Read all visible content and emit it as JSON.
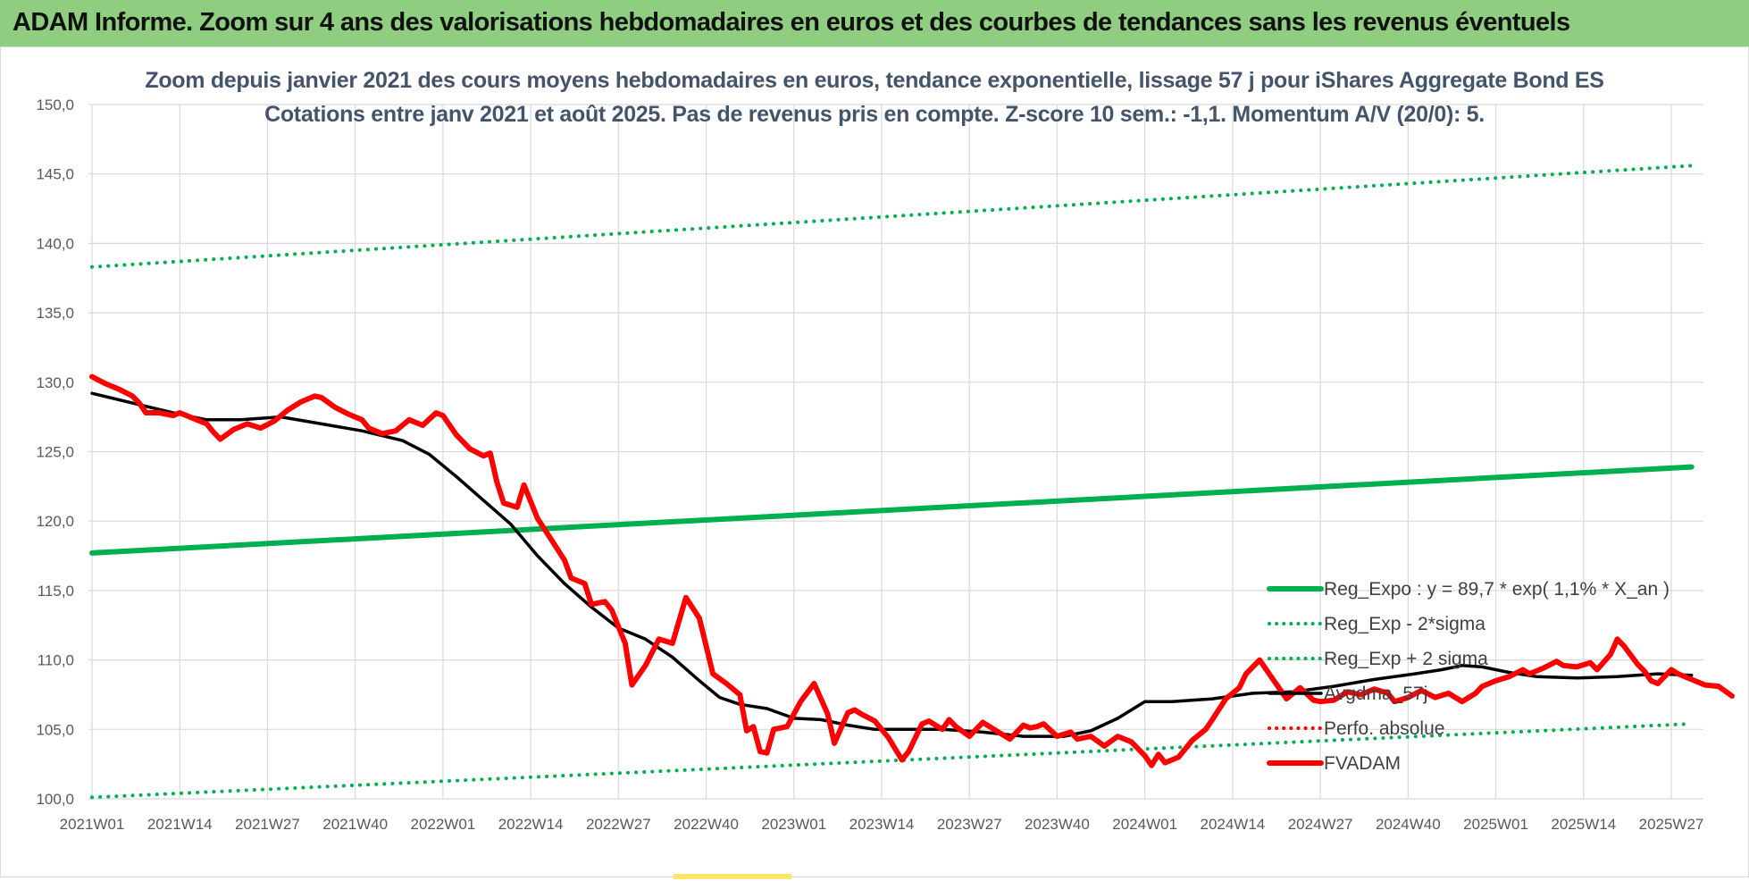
{
  "banner": {
    "title": "ADAM Informe. Zoom sur 4 ans des valorisations hebdomadaires en euros et des courbes de tendances sans les revenus éventuels"
  },
  "colors": {
    "banner_bg": "#8fce80",
    "trend_green": "#00b050",
    "fvadam_red": "#ff0000",
    "smoothing_black": "#000000"
  },
  "chart_data": {
    "type": "line",
    "title": [
      "Zoom depuis janvier 2021 des cours moyens hebdomadaires en euros, tendance exponentielle, lissage 57 j pour iShares Aggregate  Bond ES",
      "Cotations entre janv 2021 et août 2025.  Pas de revenus pris en compte. Z-score 10 sem.: -1,1. Momentum A/V (20/0): 5."
    ],
    "xlabel": "",
    "ylabel": "",
    "ylim": [
      100,
      150
    ],
    "yticks": [
      "100,0",
      "105,0",
      "110,0",
      "115,0",
      "120,0",
      "125,0",
      "130,0",
      "135,0",
      "140,0",
      "145,0",
      "150,0"
    ],
    "xlim": [
      0,
      237
    ],
    "xticks": [
      {
        "label": "2021W01",
        "x": 0
      },
      {
        "label": "2021W14",
        "x": 13
      },
      {
        "label": "2021W27",
        "x": 26
      },
      {
        "label": "2021W40",
        "x": 39
      },
      {
        "label": "2022W01",
        "x": 52
      },
      {
        "label": "2022W14",
        "x": 65
      },
      {
        "label": "2022W27",
        "x": 78
      },
      {
        "label": "2022W40",
        "x": 91
      },
      {
        "label": "2023W01",
        "x": 104
      },
      {
        "label": "2023W14",
        "x": 117
      },
      {
        "label": "2023W27",
        "x": 130
      },
      {
        "label": "2023W40",
        "x": 143
      },
      {
        "label": "2024W01",
        "x": 156
      },
      {
        "label": "2024W14",
        "x": 169
      },
      {
        "label": "2024W27",
        "x": 182
      },
      {
        "label": "2024W40",
        "x": 195
      },
      {
        "label": "2025W01",
        "x": 208
      },
      {
        "label": "2025W14",
        "x": 221
      },
      {
        "label": "2025W27",
        "x": 234
      }
    ],
    "grid": true,
    "legend_position": "lower-right",
    "series": [
      {
        "name": "Reg_Expo : y = 89,7 * exp( 1,1% *  X_an )",
        "style": "solid",
        "color": "#00b050",
        "width": 6,
        "points": [
          [
            0,
            117.7
          ],
          [
            237,
            123.9
          ]
        ]
      },
      {
        "name": "Reg_Exp - 2*sigma",
        "style": "dotted",
        "color": "#00b050",
        "width": 4,
        "points": [
          [
            0,
            100.1
          ],
          [
            237,
            105.4
          ]
        ]
      },
      {
        "name": "Reg_Exp + 2 sigma",
        "style": "dotted",
        "color": "#00b050",
        "width": 4,
        "points": [
          [
            0,
            138.3
          ],
          [
            237,
            145.6
          ]
        ]
      },
      {
        "name": "Avgdma_57j",
        "style": "solid",
        "color": "#000000",
        "width": 3.5,
        "points": [
          [
            0,
            129.2
          ],
          [
            6,
            128.5
          ],
          [
            12,
            127.8
          ],
          [
            17,
            127.3
          ],
          [
            22,
            127.3
          ],
          [
            28,
            127.5
          ],
          [
            34,
            127.0
          ],
          [
            40,
            126.5
          ],
          [
            46,
            125.8
          ],
          [
            50,
            124.8
          ],
          [
            54,
            123.2
          ],
          [
            58,
            121.5
          ],
          [
            62,
            119.8
          ],
          [
            66,
            117.5
          ],
          [
            70,
            115.5
          ],
          [
            74,
            113.8
          ],
          [
            78,
            112.3
          ],
          [
            82,
            111.5
          ],
          [
            86,
            110.2
          ],
          [
            90,
            108.5
          ],
          [
            93,
            107.3
          ],
          [
            96,
            106.8
          ],
          [
            100,
            106.5
          ],
          [
            104,
            105.8
          ],
          [
            108,
            105.7
          ],
          [
            112,
            105.3
          ],
          [
            116,
            105.0
          ],
          [
            120,
            105.0
          ],
          [
            126,
            105.0
          ],
          [
            132,
            104.8
          ],
          [
            138,
            104.5
          ],
          [
            144,
            104.5
          ],
          [
            148,
            104.9
          ],
          [
            152,
            105.8
          ],
          [
            156,
            107.0
          ],
          [
            160,
            107.0
          ],
          [
            166,
            107.2
          ],
          [
            172,
            107.6
          ],
          [
            178,
            107.7
          ],
          [
            184,
            108.1
          ],
          [
            190,
            108.6
          ],
          [
            196,
            109.0
          ],
          [
            200,
            109.3
          ],
          [
            203,
            109.6
          ],
          [
            206,
            109.5
          ],
          [
            210,
            109.1
          ],
          [
            214,
            108.8
          ],
          [
            220,
            108.7
          ],
          [
            226,
            108.8
          ],
          [
            232,
            109.0
          ],
          [
            237,
            108.9
          ]
        ]
      },
      {
        "name": "Perfo. absolue",
        "style": "dotted",
        "color": "#ff0000",
        "width": 3,
        "points": []
      },
      {
        "name": "FVADAM",
        "style": "solid",
        "color": "#ff0000",
        "width": 6,
        "points": [
          [
            0,
            130.4
          ],
          [
            2,
            129.9
          ],
          [
            4,
            129.5
          ],
          [
            6,
            129.0
          ],
          [
            7,
            128.5
          ],
          [
            8,
            127.8
          ],
          [
            10,
            127.8
          ],
          [
            12,
            127.6
          ],
          [
            13,
            127.8
          ],
          [
            15,
            127.4
          ],
          [
            17,
            127.0
          ],
          [
            18,
            126.4
          ],
          [
            19,
            125.9
          ],
          [
            21,
            126.6
          ],
          [
            23,
            127.0
          ],
          [
            25,
            126.7
          ],
          [
            27,
            127.2
          ],
          [
            29,
            128.0
          ],
          [
            31,
            128.6
          ],
          [
            33,
            129.0
          ],
          [
            34,
            128.9
          ],
          [
            36,
            128.2
          ],
          [
            38,
            127.7
          ],
          [
            40,
            127.3
          ],
          [
            41,
            126.7
          ],
          [
            43,
            126.3
          ],
          [
            45,
            126.5
          ],
          [
            47,
            127.3
          ],
          [
            49,
            126.9
          ],
          [
            51,
            127.8
          ],
          [
            52,
            127.6
          ],
          [
            54,
            126.2
          ],
          [
            56,
            125.2
          ],
          [
            58,
            124.7
          ],
          [
            59,
            124.9
          ],
          [
            60,
            122.8
          ],
          [
            61,
            121.3
          ],
          [
            63,
            121.0
          ],
          [
            64,
            122.6
          ],
          [
            66,
            120.2
          ],
          [
            68,
            118.7
          ],
          [
            70,
            117.2
          ],
          [
            71,
            115.9
          ],
          [
            73,
            115.5
          ],
          [
            74,
            114.0
          ],
          [
            76,
            114.2
          ],
          [
            77,
            113.6
          ],
          [
            79,
            111.2
          ],
          [
            80,
            108.2
          ],
          [
            82,
            109.6
          ],
          [
            84,
            111.5
          ],
          [
            86,
            111.2
          ],
          [
            88,
            114.5
          ],
          [
            90,
            113.0
          ],
          [
            92,
            109.0
          ],
          [
            94,
            108.3
          ],
          [
            96,
            107.5
          ],
          [
            97,
            104.9
          ],
          [
            98,
            105.2
          ],
          [
            99,
            103.4
          ],
          [
            100,
            103.3
          ],
          [
            101,
            105.0
          ],
          [
            103,
            105.2
          ],
          [
            105,
            107.0
          ],
          [
            107,
            108.3
          ],
          [
            109,
            106.1
          ],
          [
            110,
            104.0
          ],
          [
            112,
            106.2
          ],
          [
            113,
            106.4
          ],
          [
            114,
            106.1
          ],
          [
            116,
            105.6
          ],
          [
            118,
            104.4
          ],
          [
            120,
            102.8
          ],
          [
            121,
            103.4
          ],
          [
            123,
            105.4
          ],
          [
            124,
            105.6
          ],
          [
            126,
            105.0
          ],
          [
            127,
            105.7
          ],
          [
            128,
            105.2
          ],
          [
            130,
            104.5
          ],
          [
            132,
            105.5
          ],
          [
            134,
            104.9
          ],
          [
            136,
            104.3
          ],
          [
            138,
            105.3
          ],
          [
            139,
            105.1
          ],
          [
            140,
            105.2
          ],
          [
            141,
            105.4
          ],
          [
            143,
            104.5
          ],
          [
            145,
            104.8
          ],
          [
            146,
            104.3
          ],
          [
            148,
            104.5
          ],
          [
            150,
            103.8
          ],
          [
            152,
            104.5
          ],
          [
            154,
            104.1
          ],
          [
            156,
            103.1
          ],
          [
            157,
            102.4
          ],
          [
            158,
            103.2
          ],
          [
            159,
            102.6
          ],
          [
            161,
            103.0
          ],
          [
            163,
            104.2
          ],
          [
            165,
            105.0
          ],
          [
            166,
            105.7
          ],
          [
            168,
            107.2
          ],
          [
            170,
            108.0
          ],
          [
            171,
            109.0
          ],
          [
            173,
            110.0
          ],
          [
            175,
            108.6
          ],
          [
            177,
            107.2
          ],
          [
            179,
            108.0
          ],
          [
            181,
            107.1
          ],
          [
            182,
            107.0
          ],
          [
            184,
            107.1
          ],
          [
            186,
            107.7
          ],
          [
            188,
            107.5
          ],
          [
            190,
            107.9
          ],
          [
            192,
            107.6
          ],
          [
            193,
            107.0
          ],
          [
            195,
            107.3
          ],
          [
            197,
            107.8
          ],
          [
            199,
            107.3
          ],
          [
            201,
            107.6
          ],
          [
            203,
            107.0
          ],
          [
            205,
            107.6
          ],
          [
            206,
            108.1
          ],
          [
            208,
            108.5
          ],
          [
            210,
            108.8
          ],
          [
            212,
            109.3
          ],
          [
            213,
            109.0
          ],
          [
            215,
            109.4
          ],
          [
            217,
            109.9
          ],
          [
            218,
            109.6
          ],
          [
            220,
            109.5
          ],
          [
            222,
            109.8
          ],
          [
            223,
            109.3
          ],
          [
            225,
            110.4
          ],
          [
            226,
            111.5
          ],
          [
            227,
            111.0
          ],
          [
            229,
            109.7
          ],
          [
            230,
            109.2
          ],
          [
            231,
            108.5
          ],
          [
            232,
            108.3
          ],
          [
            234,
            109.3
          ],
          [
            235,
            109.0
          ],
          [
            237,
            108.6
          ],
          [
            239,
            108.2
          ],
          [
            241,
            108.1
          ],
          [
            243,
            107.4
          ]
        ]
      }
    ]
  }
}
